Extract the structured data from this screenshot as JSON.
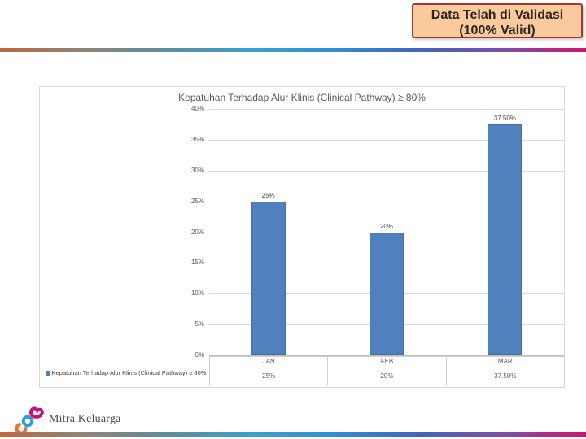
{
  "badge": {
    "line1": "Data Telah di Validasi",
    "line2": "(100% Valid)",
    "bg_color": "#FAC99C",
    "border_color": "#9D3B31",
    "text_color": "#2B2422"
  },
  "brand": {
    "logo_text": "Mitra Keluarga",
    "stripe_gradient": [
      "#C16740",
      "#8E8377",
      "#5E8C9F",
      "#3AA0CC",
      "#2E8FD4",
      "#4066B8",
      "#7C4FA8",
      "#CE1470"
    ],
    "logo_colors": {
      "orange": "#E0763B",
      "blue": "#2D9BD5",
      "magenta": "#C7107E"
    }
  },
  "chart_data": {
    "type": "bar",
    "title": "Kepatuhan Terhadap Alur Klinis (Clinical Pathway) ≥ 80%",
    "categories": [
      "JAN",
      "FEB",
      "MAR"
    ],
    "series": [
      {
        "name": "Kepatuhan Terhadap Alur Klinis (Clinical Pathway) ≥ 80%",
        "values": [
          25,
          20,
          37.5
        ]
      }
    ],
    "value_labels": [
      "25%",
      "20%",
      "37.50%"
    ],
    "xlabel": "",
    "ylabel": "",
    "ylim": [
      0,
      40
    ],
    "ytick_step": 5,
    "ytick_suffix": "%",
    "grid": true,
    "legend_position": "data-table",
    "bar_color": "#4E81BD",
    "bar_border_color": "#41719C",
    "data_table": {
      "legend_label": "Kepatuhan Terhadap Alur Klinis (Clinical Pathway) ≥ 80%",
      "category_row": [
        "JAN",
        "FEB",
        "MAR"
      ],
      "value_row": [
        "25%",
        "20%",
        "37.50%"
      ]
    }
  }
}
